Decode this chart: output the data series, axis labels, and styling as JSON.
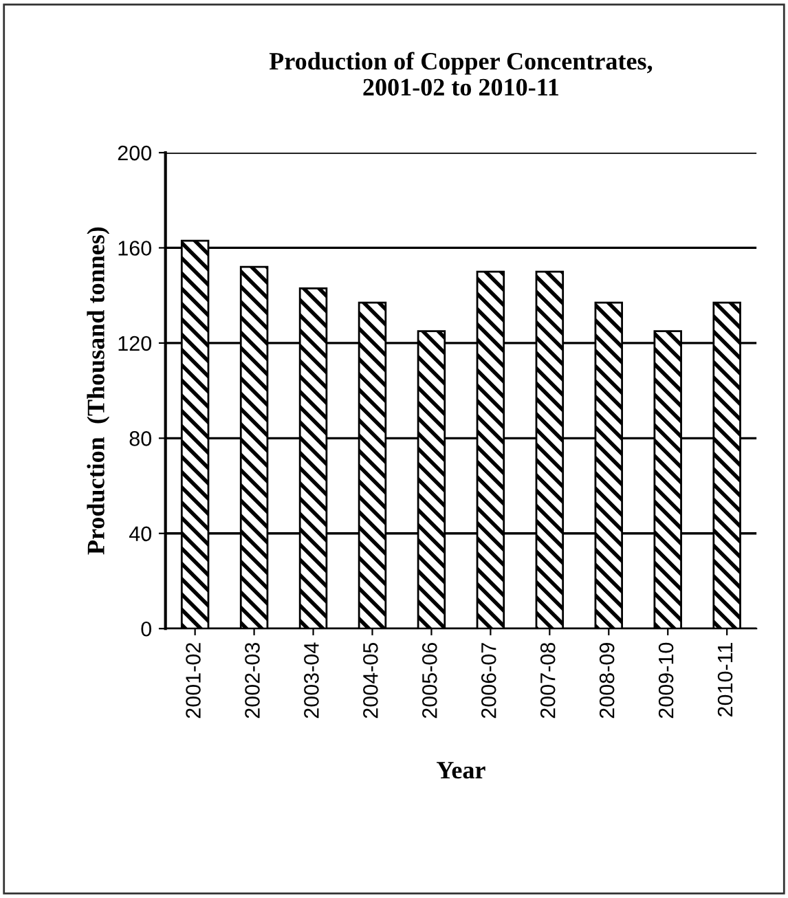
{
  "chart_data": {
    "type": "bar",
    "title": "Production of Copper Concentrates,\n2001-02 to 2010-11",
    "xlabel": "Year",
    "ylabel": "Production  (Thousand tonnes)",
    "categories": [
      "2001-02",
      "2002-03",
      "2003-04",
      "2004-05",
      "2005-06",
      "2006-07",
      "2007-08",
      "2008-09",
      "2009-10",
      "2010-11"
    ],
    "values": [
      163,
      152,
      143,
      137,
      125,
      150,
      150,
      137,
      125,
      137
    ],
    "color": "#000000",
    "ylim": [
      0,
      200
    ],
    "yticks": [
      0,
      40,
      80,
      120,
      160,
      200
    ],
    "grid": "y",
    "legend": false
  }
}
